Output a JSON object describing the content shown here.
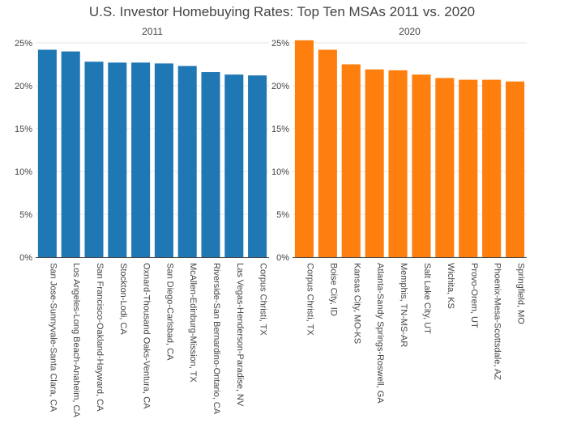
{
  "chart_data": {
    "title": "U.S. Investor Homebuying Rates: Top Ten MSAs 2011 vs. 2020",
    "ylim": [
      0,
      25
    ],
    "yticks": [
      "0%",
      "5%",
      "10%",
      "15%",
      "20%",
      "25%"
    ],
    "grid": true,
    "charts": [
      {
        "type": "bar",
        "subtitle": "2011",
        "color": "#1f77b4",
        "categories": [
          "San Jose-Sunnyvale-Santa Clara, CA",
          "Los Angeles-Long Beach-Anaheim, CA",
          "San Francisco-Oakland-Hayward, CA",
          "Stockton-Lodi, CA",
          "Oxnard-Thousand Oaks-Ventura, CA",
          "San Diego-Carlsbad, CA",
          "McAllen-Edinburg-Mission, TX",
          "Riverside-San Bernardino-Ontario, CA",
          "Las Vegas-Henderson-Paradise, NV",
          "Corpus Christi, TX"
        ],
        "values": [
          24.2,
          24.0,
          22.8,
          22.7,
          22.7,
          22.6,
          22.3,
          21.6,
          21.3,
          21.2
        ]
      },
      {
        "type": "bar",
        "subtitle": "2020",
        "color": "#ff7f0e",
        "categories": [
          "Corpus Christi, TX",
          "Boise City, ID",
          "Kansas City, MO-KS",
          "Atlanta-Sandy Springs-Roswell, GA",
          "Memphis, TN-MS-AR",
          "Salt Lake City, UT",
          "Wichita, KS",
          "Provo-Orem, UT",
          "Phoenix-Mesa-Scottsdale, AZ",
          "Springfield, MO"
        ],
        "values": [
          25.3,
          24.2,
          22.5,
          21.9,
          21.8,
          21.3,
          20.9,
          20.7,
          20.7,
          20.5
        ]
      }
    ]
  }
}
